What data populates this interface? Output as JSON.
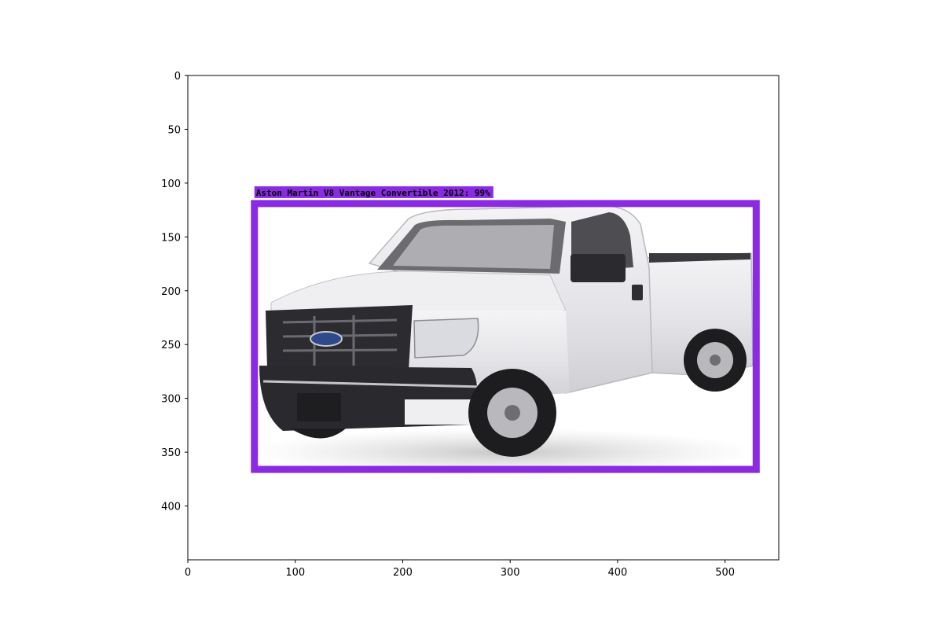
{
  "figure": {
    "image_extent": {
      "width": 550,
      "height": 450
    },
    "x_ticks": [
      0,
      100,
      200,
      300,
      400,
      500
    ],
    "y_ticks": [
      0,
      50,
      100,
      150,
      200,
      250,
      300,
      350,
      400
    ],
    "picture": {
      "subject": "white-pickup-truck",
      "body_color": "#e9e9ec",
      "trim_color": "#2a2a2c"
    }
  },
  "detection": {
    "label": "Aston Martin V8 Vantage Convertible 2012: 99%",
    "box": {
      "x_min": 62,
      "y_min": 119,
      "x_max": 529,
      "y_max": 366
    },
    "color": "#8a2be2"
  }
}
